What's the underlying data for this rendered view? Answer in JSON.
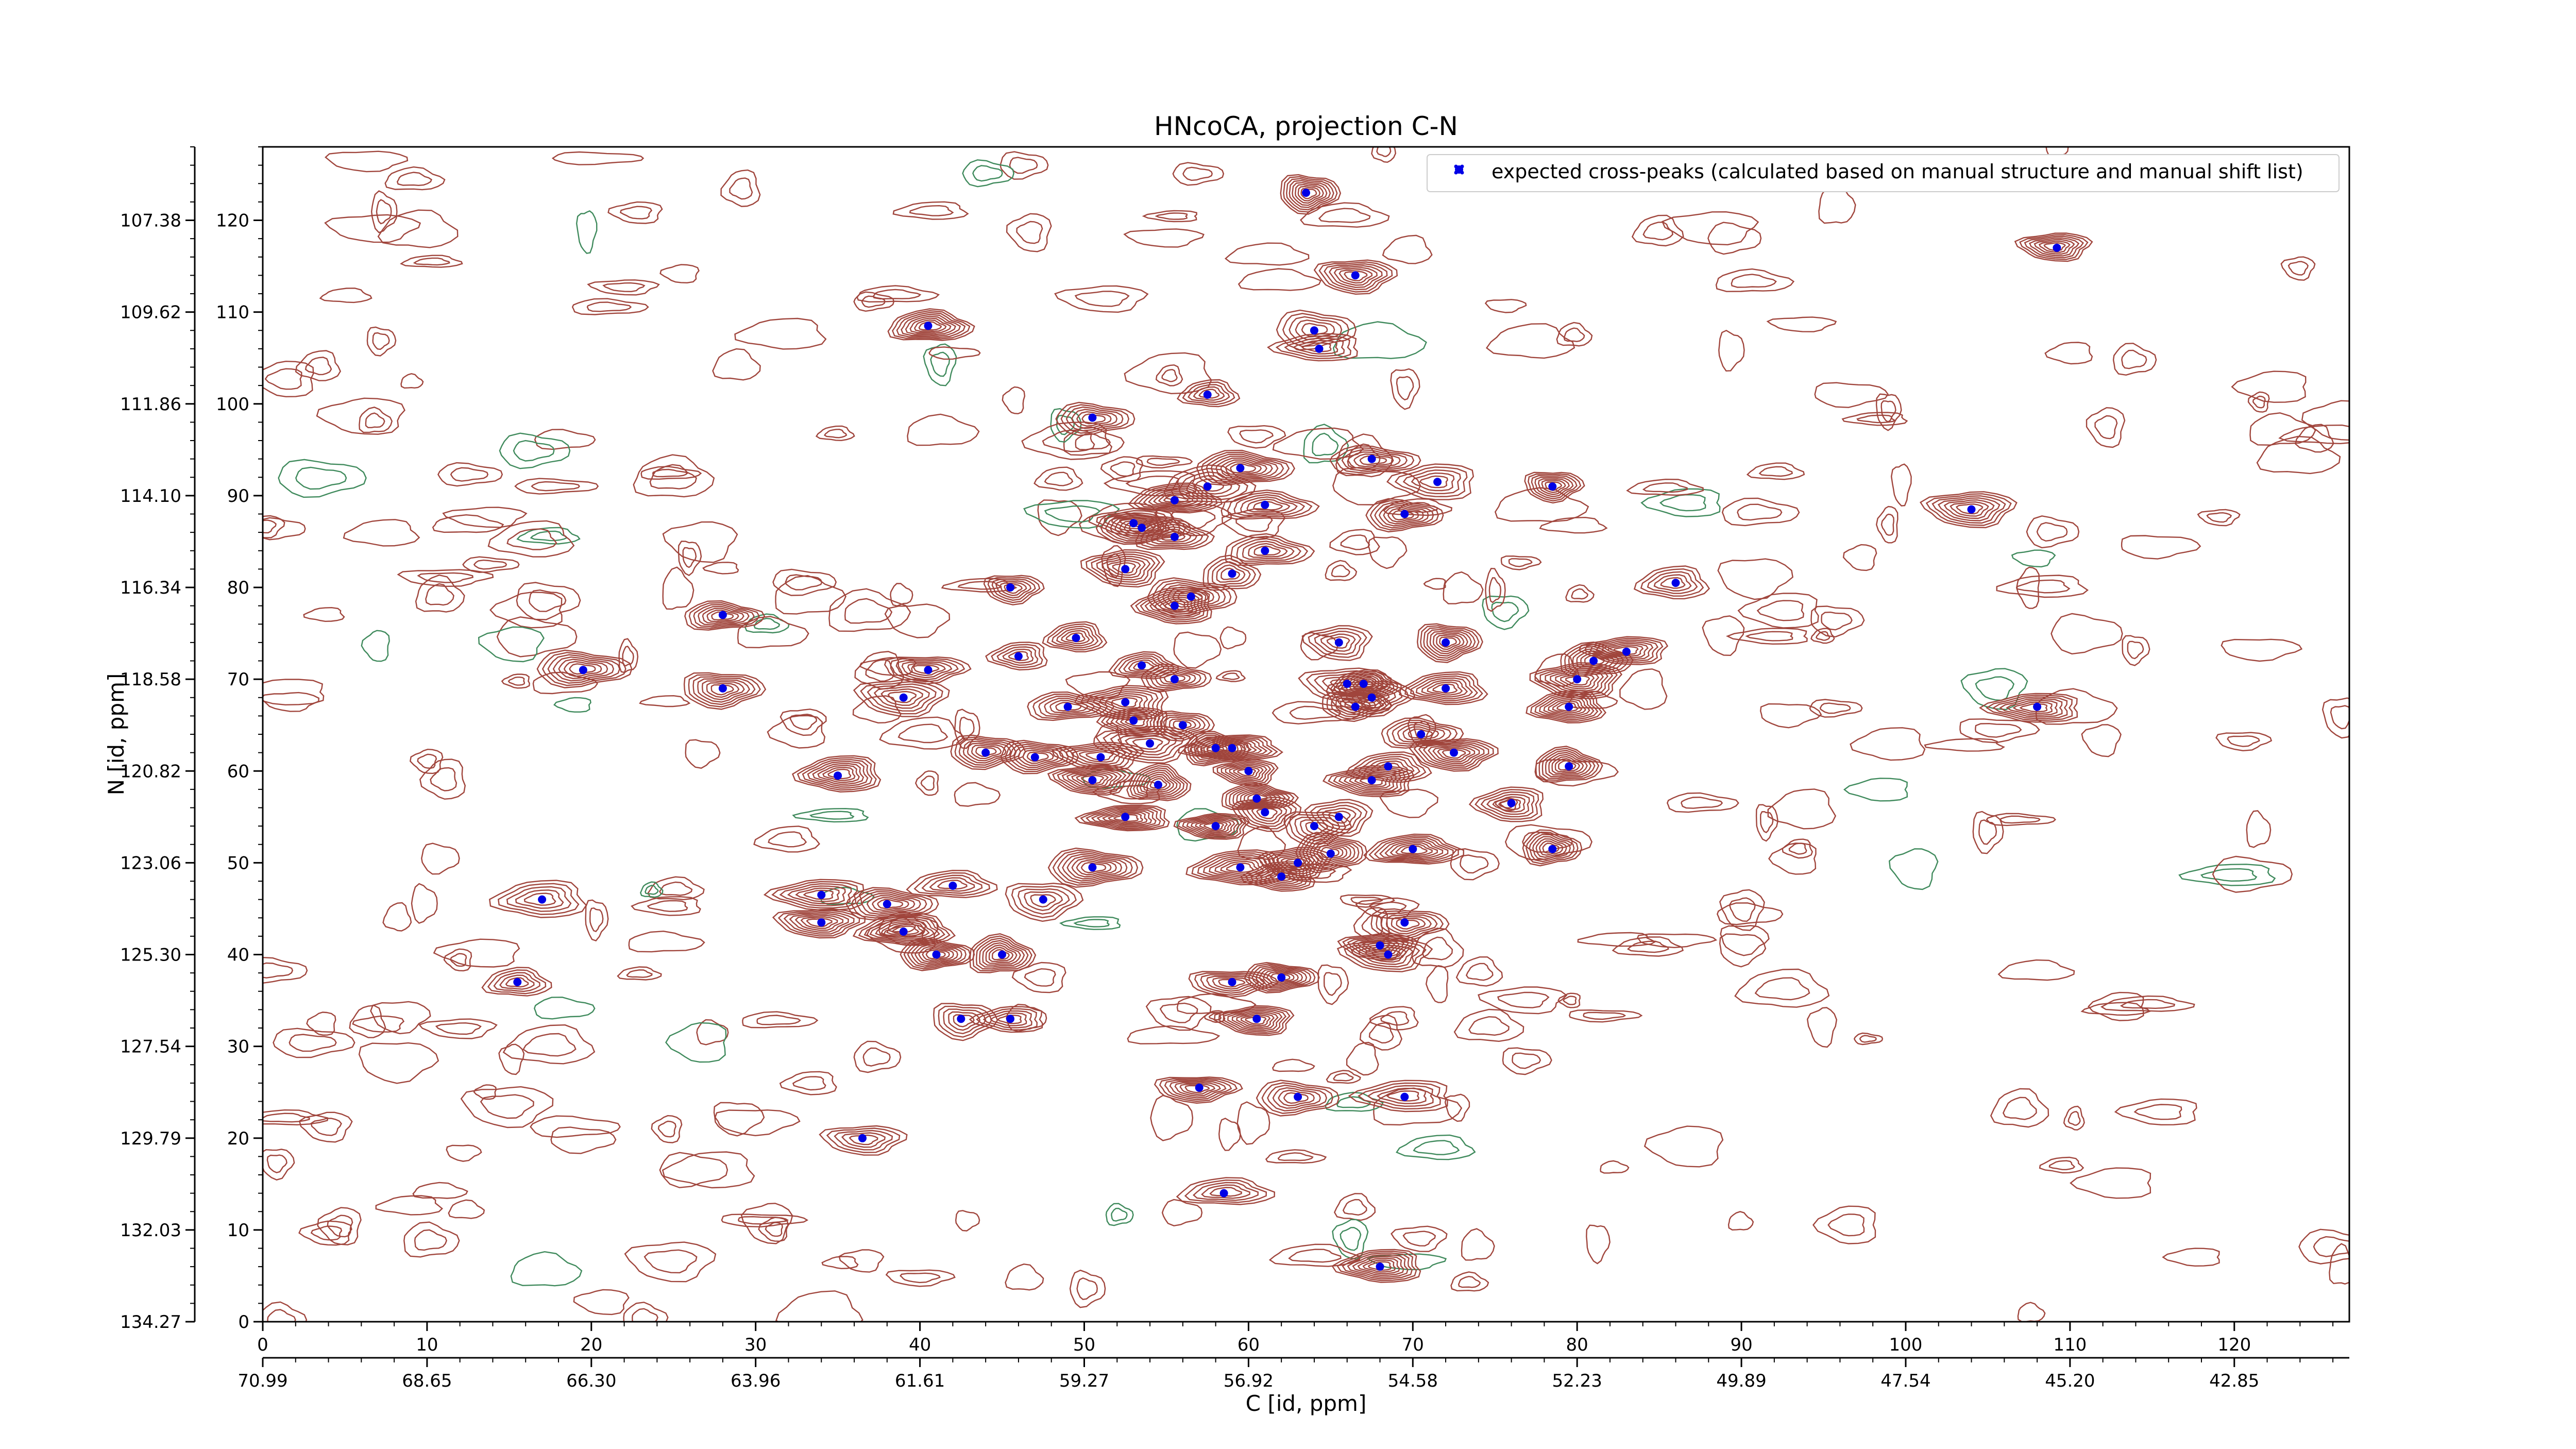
{
  "chart_data": {
    "type": "scatter",
    "title": "HNcoCA, projection C-N",
    "xlabel": "C [id, ppm]",
    "ylabel": "N [id, ppm]",
    "xlim": [
      0,
      127
    ],
    "ylim": [
      0,
      128
    ],
    "x_ticks": [
      "0",
      "10",
      "20",
      "30",
      "40",
      "50",
      "60",
      "70",
      "80",
      "90",
      "100",
      "110",
      "120"
    ],
    "x_secondary_ticks": [
      "70.99",
      "68.65",
      "66.30",
      "63.96",
      "61.61",
      "59.27",
      "56.92",
      "54.58",
      "52.23",
      "49.89",
      "47.54",
      "45.20",
      "42.85"
    ],
    "y_ticks": [
      "0",
      "10",
      "20",
      "30",
      "40",
      "50",
      "60",
      "70",
      "80",
      "90",
      "100",
      "110",
      "120"
    ],
    "y_secondary_ticks": [
      "134.27",
      "132.03",
      "129.79",
      "127.54",
      "125.30",
      "123.06",
      "120.82",
      "118.58",
      "116.34",
      "114.10",
      "111.86",
      "109.62",
      "107.38"
    ],
    "legend": {
      "label": "expected cross-peaks (calculated based on manual structure and manual shift list)",
      "placement": "upper-right"
    },
    "colors": {
      "positive_contour": "#a0453c",
      "negative_contour": "#3f8a5c",
      "marker": "#0000e6"
    },
    "grid": false,
    "series": [
      {
        "name": "expected cross-peaks (calculated based on manual structure and manual shift list)",
        "points": [
          [
            63.5,
            123
          ],
          [
            66.5,
            114
          ],
          [
            64,
            108
          ],
          [
            64.3,
            106
          ],
          [
            40.5,
            108.5
          ],
          [
            57.5,
            101
          ],
          [
            50.5,
            98.5
          ],
          [
            67.5,
            94
          ],
          [
            71.5,
            91.5
          ],
          [
            78.5,
            91
          ],
          [
            55.5,
            89.5
          ],
          [
            57.5,
            91
          ],
          [
            59.5,
            93
          ],
          [
            61,
            89
          ],
          [
            53,
            87
          ],
          [
            53.5,
            86.5
          ],
          [
            55.5,
            85.5
          ],
          [
            61,
            84
          ],
          [
            69.5,
            88
          ],
          [
            104,
            88.5
          ],
          [
            109.2,
            117
          ],
          [
            52.5,
            82
          ],
          [
            59,
            81.5
          ],
          [
            45.5,
            80
          ],
          [
            56.5,
            79
          ],
          [
            55.5,
            78
          ],
          [
            28,
            77
          ],
          [
            86,
            80.5
          ],
          [
            65.5,
            74
          ],
          [
            72,
            74
          ],
          [
            49.5,
            74.5
          ],
          [
            46,
            72.5
          ],
          [
            53.5,
            71.5
          ],
          [
            55.5,
            70
          ],
          [
            40.5,
            71
          ],
          [
            39,
            68
          ],
          [
            66,
            69.5
          ],
          [
            67,
            69.5
          ],
          [
            72,
            69
          ],
          [
            80,
            70
          ],
          [
            81,
            72
          ],
          [
            83,
            73
          ],
          [
            19.5,
            71
          ],
          [
            28,
            69
          ],
          [
            66.5,
            67
          ],
          [
            67.5,
            68
          ],
          [
            49,
            67
          ],
          [
            52.5,
            67.5
          ],
          [
            53,
            65.5
          ],
          [
            56,
            65
          ],
          [
            79.5,
            67
          ],
          [
            108,
            67
          ],
          [
            54,
            63
          ],
          [
            58,
            62.5
          ],
          [
            59,
            62.5
          ],
          [
            70.5,
            64
          ],
          [
            72.5,
            62
          ],
          [
            44,
            62
          ],
          [
            47,
            61.5
          ],
          [
            51,
            61.5
          ],
          [
            50.5,
            59
          ],
          [
            54.5,
            58.5
          ],
          [
            60,
            60
          ],
          [
            60.5,
            57
          ],
          [
            67.5,
            59
          ],
          [
            68.5,
            60.5
          ],
          [
            79.5,
            60.5
          ],
          [
            35,
            59.5
          ],
          [
            52.5,
            55
          ],
          [
            58,
            54
          ],
          [
            61,
            55.5
          ],
          [
            64,
            54
          ],
          [
            65.5,
            55
          ],
          [
            76,
            56.5
          ],
          [
            70,
            51.5
          ],
          [
            78.5,
            51.5
          ],
          [
            59.5,
            49.5
          ],
          [
            62,
            48.5
          ],
          [
            63,
            50
          ],
          [
            65,
            51
          ],
          [
            50.5,
            49.5
          ],
          [
            42,
            47.5
          ],
          [
            47.5,
            46
          ],
          [
            17,
            46
          ],
          [
            34,
            46.5
          ],
          [
            38,
            45.5
          ],
          [
            34,
            43.5
          ],
          [
            39,
            42.5
          ],
          [
            69.5,
            43.5
          ],
          [
            68,
            41
          ],
          [
            68.5,
            40
          ],
          [
            41,
            40
          ],
          [
            45,
            40
          ],
          [
            15.5,
            37
          ],
          [
            59,
            37
          ],
          [
            62,
            37.5
          ],
          [
            60.5,
            33
          ],
          [
            42.5,
            33
          ],
          [
            45.5,
            33
          ],
          [
            57,
            25.5
          ],
          [
            63,
            24.5
          ],
          [
            69.5,
            24.5
          ],
          [
            36.5,
            20
          ],
          [
            58.5,
            14
          ],
          [
            68,
            6
          ]
        ]
      }
    ]
  }
}
